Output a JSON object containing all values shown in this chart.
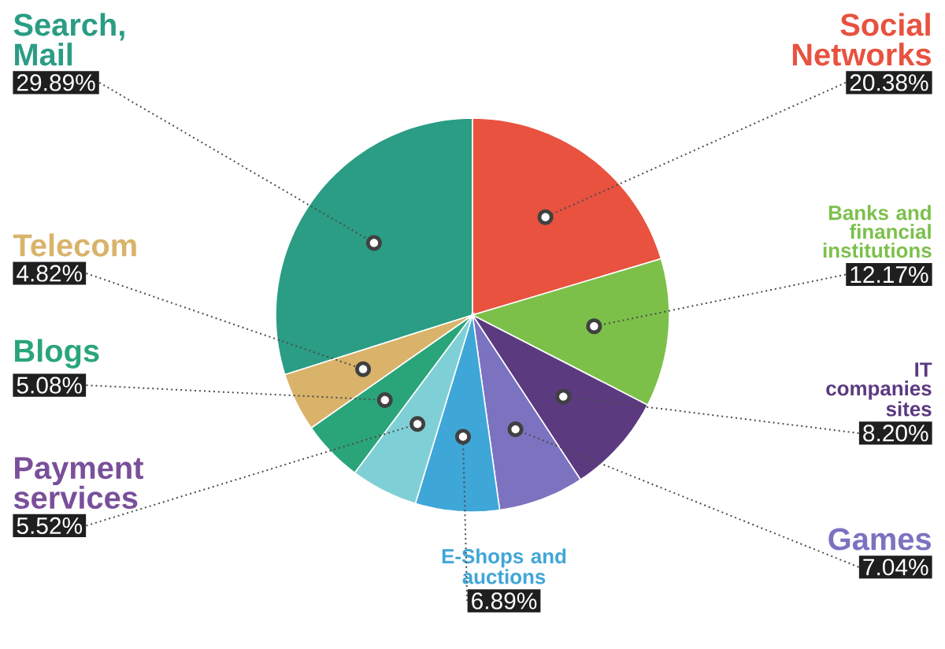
{
  "chart_data": {
    "type": "pie",
    "categories": [
      "Search, Mail",
      "Social Networks",
      "Banks and financial institutions",
      "IT companies sites",
      "Games",
      "E-Shops and auctions",
      "Payment services",
      "Blogs",
      "Telecom"
    ],
    "values": [
      29.89,
      20.38,
      12.17,
      8.2,
      7.04,
      6.89,
      5.52,
      5.08,
      4.82
    ],
    "value_labels": [
      "29.89%",
      "20.38%",
      "12.17%",
      "8.20%",
      "7.04%",
      "6.89%",
      "5.52%",
      "5.08%",
      "4.82%"
    ],
    "colors": [
      "#2a9d84",
      "#e8523f",
      "#7cc04a",
      "#5b3a80",
      "#7b73c0",
      "#3fa6d8",
      "#7fd0d6",
      "#2aa57a",
      "#d9b36a"
    ]
  }
}
